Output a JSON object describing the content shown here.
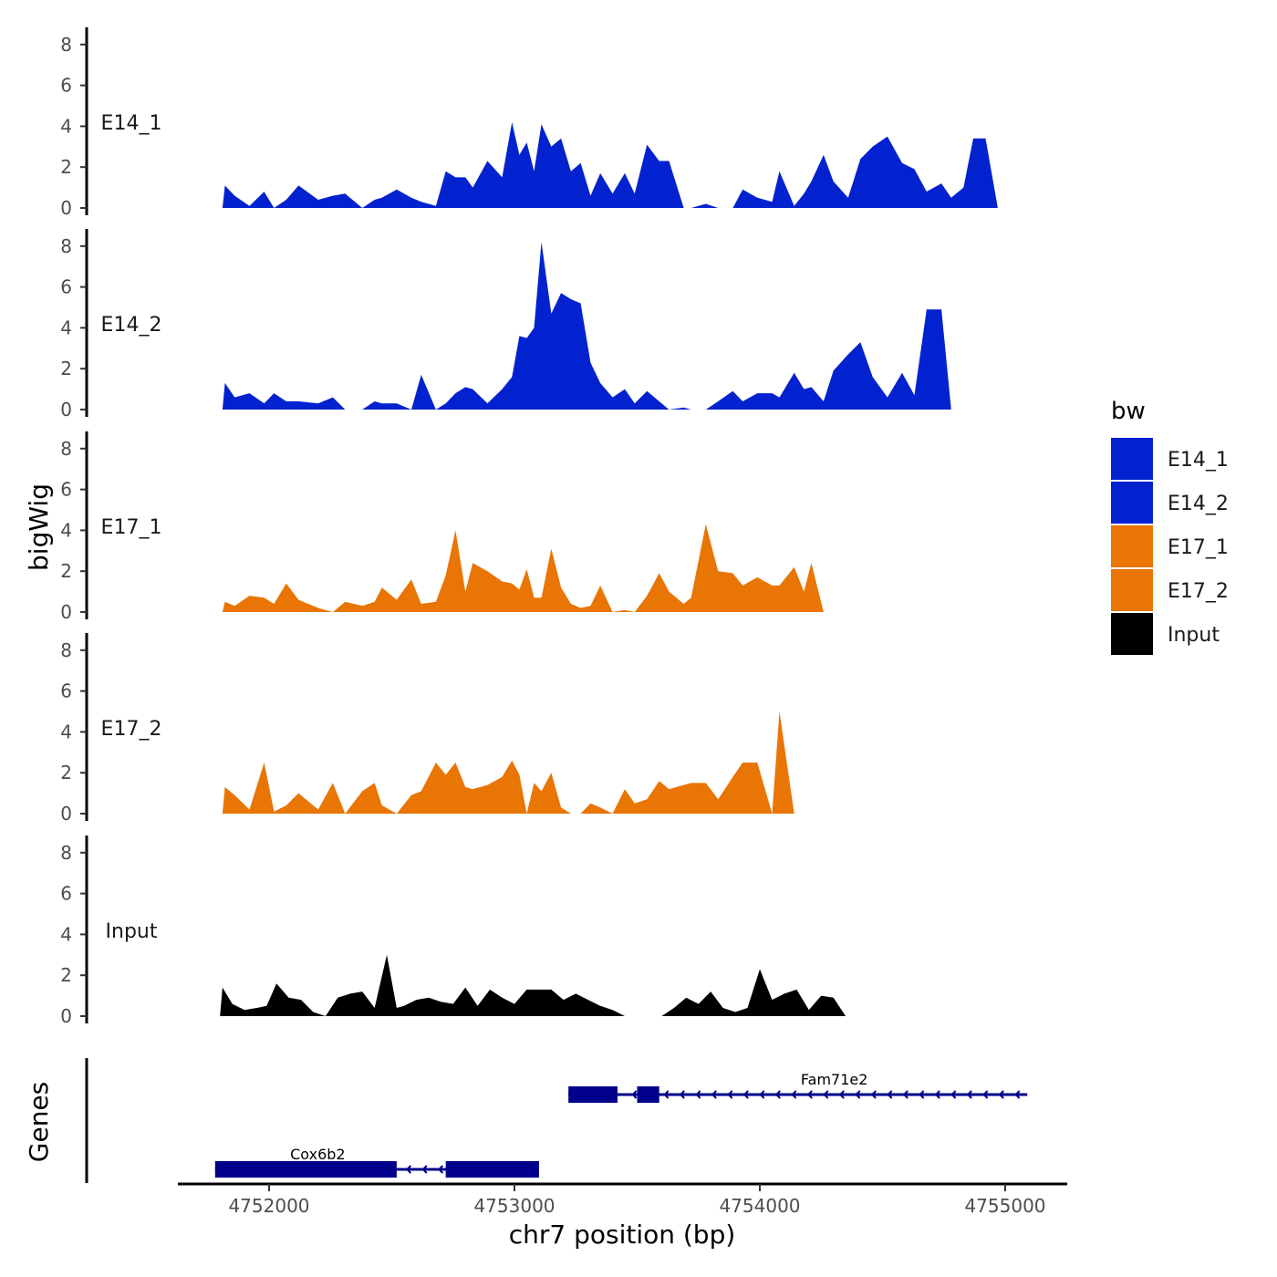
{
  "chart_data": {
    "type": "area",
    "chromosome": "chr7",
    "xlabel": "chr7 position (bp)",
    "ylabel": "bigWig",
    "genes_label": "Genes",
    "xlim": [
      4751770,
      4755100
    ],
    "x_ticks": [
      4752000,
      4753000,
      4754000,
      4755000
    ],
    "x_tick_labels": [
      "4752000",
      "4753000",
      "4754000",
      "4755000"
    ],
    "ylim": [
      0,
      8.5
    ],
    "y_ticks": [
      0,
      2,
      4,
      6,
      8
    ],
    "y_tick_labels": [
      "0",
      "2",
      "4",
      "6",
      "8"
    ],
    "legend": {
      "title": "bw",
      "entries": [
        {
          "label": "E14_1",
          "color": "#0222D0"
        },
        {
          "label": "E14_2",
          "color": "#0222D0"
        },
        {
          "label": "E17_1",
          "color": "#E87504"
        },
        {
          "label": "E17_2",
          "color": "#E87504"
        },
        {
          "label": "Input",
          "color": "#000000"
        }
      ]
    },
    "series": [
      {
        "name": "E14_1",
        "color": "#0222D0",
        "x": [
          4751810,
          4751820,
          4751860,
          4751920,
          4751980,
          4752020,
          4752070,
          4752120,
          4752200,
          4752260,
          4752310,
          4752380,
          4752430,
          4752460,
          4752520,
          4752580,
          4752620,
          4752680,
          4752720,
          4752760,
          4752800,
          4752830,
          4752890,
          4752950,
          4752990,
          4753020,
          4753050,
          4753080,
          4753110,
          4753150,
          4753190,
          4753230,
          4753270,
          4753310,
          4753350,
          4753400,
          4753450,
          4753490,
          4753540,
          4753590,
          4753630,
          4753690,
          4753720,
          4753780,
          4753830,
          4753890,
          4753930,
          4753990,
          4754050,
          4754080,
          4754140,
          4754180,
          4754210,
          4754260,
          4754300,
          4754360,
          4754410,
          4754460,
          4754520,
          4754580,
          4754630,
          4754680,
          4754740,
          4754780,
          4754830,
          4754870,
          4754920,
          4754970,
          4755020,
          4755060,
          4755080
        ],
        "values": [
          0.0,
          1.1,
          0.6,
          0.1,
          0.8,
          0.0,
          0.4,
          1.1,
          0.4,
          0.6,
          0.7,
          0.0,
          0.4,
          0.5,
          0.9,
          0.5,
          0.3,
          0.1,
          1.8,
          1.5,
          1.5,
          1.0,
          2.3,
          1.5,
          4.2,
          2.6,
          3.2,
          1.8,
          4.1,
          3.0,
          3.4,
          1.8,
          2.2,
          0.6,
          1.7,
          0.7,
          1.7,
          0.7,
          3.1,
          2.3,
          2.3,
          0.0,
          0.0,
          0.2,
          0.0,
          0.0,
          0.9,
          0.5,
          0.3,
          1.8,
          0.1,
          0.7,
          1.3,
          2.6,
          1.3,
          0.5,
          2.4,
          3.0,
          3.5,
          2.2,
          1.9,
          0.8,
          1.2,
          0.5,
          1.0,
          3.4,
          3.4,
          0.0,
          0.0,
          0.0,
          0.0
        ]
      },
      {
        "name": "E14_2",
        "color": "#0222D0",
        "x": [
          4751810,
          4751820,
          4751860,
          4751920,
          4751980,
          4752020,
          4752070,
          4752120,
          4752200,
          4752260,
          4752310,
          4752380,
          4752430,
          4752460,
          4752520,
          4752580,
          4752620,
          4752680,
          4752720,
          4752760,
          4752800,
          4752830,
          4752890,
          4752950,
          4752990,
          4753020,
          4753050,
          4753080,
          4753110,
          4753150,
          4753190,
          4753230,
          4753270,
          4753310,
          4753350,
          4753400,
          4753450,
          4753490,
          4753540,
          4753590,
          4753630,
          4753690,
          4753720,
          4753780,
          4753830,
          4753890,
          4753930,
          4753990,
          4754050,
          4754080,
          4754140,
          4754180,
          4754210,
          4754260,
          4754300,
          4754360,
          4754410,
          4754460,
          4754520,
          4754580,
          4754630,
          4754680,
          4754740,
          4754780,
          4754830,
          4754870,
          4754920,
          4754970,
          4755020,
          4755060,
          4755080
        ],
        "values": [
          0.0,
          1.3,
          0.6,
          0.8,
          0.3,
          0.8,
          0.4,
          0.4,
          0.3,
          0.6,
          0.0,
          0.0,
          0.4,
          0.3,
          0.3,
          0.0,
          1.7,
          0.0,
          0.3,
          0.8,
          1.1,
          1.0,
          0.3,
          1.0,
          1.6,
          3.6,
          3.5,
          4.0,
          8.2,
          4.7,
          5.7,
          5.4,
          5.2,
          2.3,
          1.3,
          0.6,
          1.0,
          0.3,
          0.9,
          0.4,
          0.0,
          0.1,
          0.0,
          0.0,
          0.4,
          0.9,
          0.4,
          0.8,
          0.8,
          0.6,
          1.8,
          1.0,
          1.1,
          0.4,
          1.9,
          2.7,
          3.3,
          1.6,
          0.6,
          1.8,
          0.7,
          4.9,
          4.9,
          0.0,
          0.0,
          0.0,
          0.0,
          0.0,
          0.0,
          0.0,
          0.0
        ]
      },
      {
        "name": "E17_1",
        "color": "#E87504",
        "x": [
          4751810,
          4751820,
          4751860,
          4751920,
          4751980,
          4752020,
          4752070,
          4752120,
          4752200,
          4752260,
          4752310,
          4752380,
          4752430,
          4752460,
          4752520,
          4752580,
          4752620,
          4752680,
          4752720,
          4752760,
          4752800,
          4752830,
          4752890,
          4752950,
          4752990,
          4753020,
          4753050,
          4753080,
          4753110,
          4753150,
          4753190,
          4753230,
          4753270,
          4753310,
          4753350,
          4753400,
          4753450,
          4753490,
          4753540,
          4753590,
          4753630,
          4753690,
          4753720,
          4753780,
          4753830,
          4753890,
          4753930,
          4753990,
          4754050,
          4754080,
          4754140,
          4754180,
          4754210,
          4754260,
          4754300,
          4754360,
          4754410,
          4754460,
          4754520,
          4754580,
          4754630,
          4754680,
          4754740,
          4754780,
          4754830,
          4754870,
          4754920,
          4754970,
          4755020,
          4755060,
          4755080
        ],
        "values": [
          0.0,
          0.5,
          0.3,
          0.8,
          0.7,
          0.4,
          1.4,
          0.6,
          0.2,
          0.0,
          0.5,
          0.3,
          0.5,
          1.2,
          0.6,
          1.6,
          0.4,
          0.5,
          1.8,
          4.0,
          1.0,
          2.4,
          2.0,
          1.5,
          1.4,
          1.1,
          2.1,
          0.7,
          0.7,
          3.1,
          1.2,
          0.4,
          0.2,
          0.3,
          1.3,
          0.0,
          0.1,
          0.0,
          0.8,
          1.9,
          1.0,
          0.4,
          0.7,
          4.3,
          2.0,
          1.9,
          1.3,
          1.7,
          1.3,
          1.3,
          2.2,
          1.0,
          2.4,
          0.0,
          0.0,
          0.0,
          0.0,
          0.0,
          0.0,
          0.0,
          0.0,
          0.0,
          0.0,
          0.0,
          0.0,
          0.0,
          0.0,
          0.0,
          0.0,
          0.0,
          0.0
        ]
      },
      {
        "name": "E17_2",
        "color": "#E87504",
        "x": [
          4751810,
          4751820,
          4751860,
          4751920,
          4751980,
          4752020,
          4752070,
          4752120,
          4752200,
          4752260,
          4752310,
          4752380,
          4752430,
          4752460,
          4752520,
          4752580,
          4752620,
          4752680,
          4752720,
          4752760,
          4752800,
          4752830,
          4752890,
          4752950,
          4752990,
          4753020,
          4753050,
          4753080,
          4753110,
          4753150,
          4753190,
          4753230,
          4753270,
          4753310,
          4753350,
          4753400,
          4753450,
          4753490,
          4753540,
          4753590,
          4753630,
          4753690,
          4753720,
          4753780,
          4753830,
          4753890,
          4753930,
          4753990,
          4754050,
          4754080,
          4754140,
          4754180,
          4754210,
          4754260,
          4754300,
          4754360,
          4754410,
          4754460,
          4754520,
          4754580,
          4754630,
          4754680,
          4754740,
          4754780,
          4754830,
          4754870,
          4754920,
          4754970,
          4755020,
          4755060,
          4755080
        ],
        "values": [
          0.0,
          1.3,
          0.9,
          0.2,
          2.5,
          0.1,
          0.4,
          1.0,
          0.2,
          1.5,
          0.0,
          1.1,
          1.5,
          0.4,
          0.0,
          0.9,
          1.1,
          2.5,
          1.9,
          2.5,
          1.3,
          1.2,
          1.4,
          1.8,
          2.6,
          1.9,
          0.0,
          1.5,
          1.1,
          2.0,
          0.3,
          0.0,
          0.0,
          0.5,
          0.3,
          0.0,
          1.2,
          0.5,
          0.7,
          1.6,
          1.2,
          1.4,
          1.5,
          1.5,
          0.7,
          1.8,
          2.5,
          2.5,
          0.0,
          5.0,
          0.0,
          0.0,
          0.0,
          0.0,
          0.0,
          0.0,
          0.0,
          0.0,
          0.0,
          0.0,
          0.0,
          0.0,
          0.0,
          0.0,
          0.0,
          0.0,
          0.0,
          0.0,
          0.0,
          0.0,
          0.0
        ]
      },
      {
        "name": "Input",
        "color": "#000000",
        "x": [
          4751800,
          4751810,
          4751850,
          4751900,
          4751950,
          4751990,
          4752030,
          4752080,
          4752130,
          4752180,
          4752230,
          4752280,
          4752330,
          4752380,
          4752430,
          4752480,
          4752520,
          4752550,
          4752600,
          4752650,
          4752700,
          4752750,
          4752800,
          4752850,
          4752900,
          4752950,
          4753000,
          4753050,
          4753100,
          4753150,
          4753200,
          4753250,
          4753300,
          4753350,
          4753400,
          4753450,
          4753500,
          4753550,
          4753600,
          4753650,
          4753700,
          4753750,
          4753800,
          4753850,
          4753900,
          4753950,
          4754000,
          4754050,
          4754100,
          4754150,
          4754200,
          4754250,
          4754300,
          4754350,
          4754400,
          4754450,
          4754500,
          4754550,
          4754600,
          4754650,
          4754700,
          4754750,
          4754800,
          4754850,
          4754900,
          4754950,
          4755000,
          4755050,
          4755080
        ],
        "values": [
          0.0,
          1.4,
          0.6,
          0.3,
          0.4,
          0.5,
          1.6,
          0.9,
          0.8,
          0.2,
          0.0,
          0.9,
          1.1,
          1.2,
          0.4,
          3.0,
          0.4,
          0.5,
          0.8,
          0.9,
          0.7,
          0.6,
          1.4,
          0.5,
          1.3,
          0.9,
          0.6,
          1.3,
          1.3,
          1.3,
          0.8,
          1.1,
          0.8,
          0.5,
          0.3,
          0.0,
          0.0,
          0.0,
          0.0,
          0.4,
          0.9,
          0.6,
          1.2,
          0.4,
          0.2,
          0.4,
          2.3,
          0.8,
          1.1,
          1.3,
          0.3,
          1.0,
          0.9,
          0.0,
          0.0,
          0.0,
          0.0,
          0.0,
          0.0,
          0.0,
          0.0,
          0.0,
          0.0,
          0.0,
          0.0,
          0.0,
          0.0,
          0.0,
          0.0
        ]
      }
    ],
    "genes": [
      {
        "name": "Fam71e2",
        "strand": "-",
        "color": "#00008B",
        "row": 0,
        "start": 4753220,
        "end": 4755090,
        "exons": [
          [
            4753220,
            4753420
          ],
          [
            4753500,
            4753590
          ]
        ]
      },
      {
        "name": "Cox6b2",
        "strand": "-",
        "color": "#00008B",
        "row": 1,
        "start": 4751780,
        "end": 4753100,
        "exons": [
          [
            4751780,
            4752520
          ],
          [
            4752720,
            4753100
          ]
        ]
      }
    ]
  }
}
